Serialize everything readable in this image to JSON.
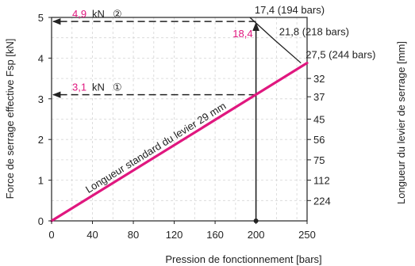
{
  "chart_data": {
    "type": "line",
    "xlabel": "Pression de fonctionnement [bars]",
    "ylabel": "Force de serrage effective Fsp [kN]",
    "y2label": "Longueur du levier de serrage [mm]",
    "xlim": [
      0,
      250
    ],
    "ylim": [
      0,
      5
    ],
    "x_ticks": [
      0,
      40,
      80,
      120,
      160,
      200,
      250
    ],
    "y_ticks": [
      0,
      1,
      2,
      3,
      4,
      5
    ],
    "grid": true,
    "series": [
      {
        "name": "Longueur standard du levier 29 mm",
        "color": "#e0177f",
        "x": [
          0,
          250
        ],
        "y": [
          0,
          3.88
        ]
      },
      {
        "name": "",
        "color": "#222222",
        "x": [
          194,
          218,
          244
        ],
        "y": [
          5.0,
          4.45,
          3.88
        ]
      }
    ],
    "lever_scale": {
      "labels": [
        "32",
        "37",
        "45",
        "56",
        "75",
        "112",
        "224"
      ],
      "force_positions": [
        3.5,
        3.05,
        2.5,
        2.0,
        1.5,
        1.0,
        0.5
      ]
    },
    "boundary_labels": [
      {
        "text": "17,4 (194 bars)",
        "x": 194,
        "y": 5.0
      },
      {
        "text": "21,8 (218 bars)",
        "x": 218,
        "y": 4.45
      },
      {
        "text": "27,5 (244 bars)",
        "x": 244,
        "y": 3.88
      }
    ],
    "annotations": [
      {
        "value": "4,9",
        "unit": "kN",
        "marker": "②",
        "y": 4.9,
        "x_from": 200
      },
      {
        "value": "3,1",
        "unit": "kN",
        "marker": "①",
        "y": 3.1,
        "x_from": 200
      },
      {
        "value": "18,4",
        "x": 200,
        "y_to": 4.9
      }
    ],
    "vertical_line_x": 200,
    "series_label": "Longueur standard du levier 29 mm"
  }
}
